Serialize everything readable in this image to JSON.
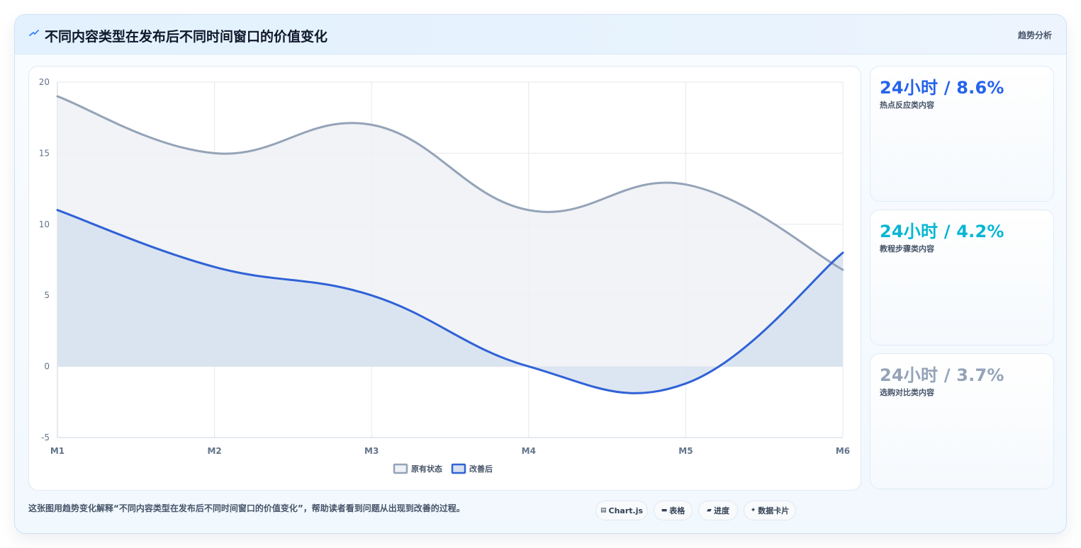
{
  "header": {
    "icon": "trend-line-icon",
    "title": "不同内容类型在发布后不同时间窗口的价值变化",
    "tag": "趋势分析"
  },
  "chart_data": {
    "type": "line",
    "categories": [
      "M1",
      "M2",
      "M3",
      "M4",
      "M5",
      "M6"
    ],
    "series": [
      {
        "name": "原有状态",
        "values": [
          19,
          15,
          17,
          11,
          12.8,
          6.8
        ],
        "color": "#94a3b8",
        "fill": "#eef1f5"
      },
      {
        "name": "改善后",
        "values": [
          11,
          7,
          5,
          0,
          -1.2,
          8
        ],
        "color": "#2f62d6",
        "fill": "#d6e0f0"
      }
    ],
    "ylim": [
      -5,
      20
    ],
    "yticks": [
      20,
      15,
      10,
      5,
      0,
      -5
    ],
    "grid": true,
    "legend_position": "bottom"
  },
  "stats": [
    {
      "value": "24小时 / 8.6%",
      "label": "热点反应类内容",
      "color": "#2563eb"
    },
    {
      "value": "24小时 / 4.2%",
      "label": "教程步骤类内容",
      "color": "#06b6d4"
    },
    {
      "value": "24小时 / 3.7%",
      "label": "选购对比类内容",
      "color": "#94a3b8"
    }
  ],
  "caption": "这张图用趋势变化解释“不同内容类型在发布后不同时间窗口的价值变化”，帮助读者看到问题从出现到改善的过程。",
  "chips": [
    {
      "icon": "chart-icon",
      "glyph": "▤",
      "label": "Chart.js"
    },
    {
      "icon": "table-icon",
      "glyph": "▬",
      "label": "表格"
    },
    {
      "icon": "progress-icon",
      "glyph": "▰",
      "label": "进度"
    },
    {
      "icon": "data-card-icon",
      "glyph": "✦",
      "label": "数据卡片"
    }
  ]
}
